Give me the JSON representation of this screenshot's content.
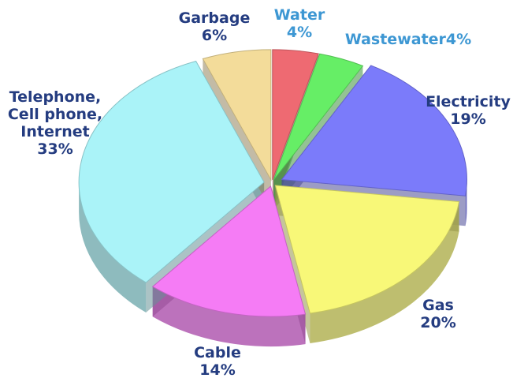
{
  "chart_data": {
    "type": "pie",
    "title": "",
    "slices": [
      {
        "name": "Water",
        "value": 4,
        "label_lines": [
          "Water",
          "4%"
        ],
        "color": "#ee6a72",
        "label_color": "#3d97d3"
      },
      {
        "name": "Wastewater",
        "value": 4,
        "label_lines": [
          "Wastewater4%"
        ],
        "color": "#66ee66",
        "label_color": "#3d97d3"
      },
      {
        "name": "Electricity",
        "value": 19,
        "label_lines": [
          "Electricity",
          "19%"
        ],
        "color": "#7b7bfa",
        "label_color": "#243c80"
      },
      {
        "name": "Gas",
        "value": 20,
        "label_lines": [
          "Gas",
          "20%"
        ],
        "color": "#f8f878",
        "label_color": "#243c80"
      },
      {
        "name": "Cable",
        "value": 14,
        "label_lines": [
          "Cable",
          "14%"
        ],
        "color": "#f57cf5",
        "label_color": "#243c80"
      },
      {
        "name": "Telephone, Cell phone, Internet",
        "value": 33,
        "label_lines": [
          "Telephone,",
          "Cell phone,",
          "Internet",
          "33%"
        ],
        "color": "#aaf3f8",
        "label_color": "#243c80"
      },
      {
        "name": "Garbage",
        "value": 6,
        "label_lines": [
          "Garbage",
          "6%"
        ],
        "color": "#f3dc9a",
        "label_color": "#243c80"
      }
    ],
    "legend": "none"
  }
}
